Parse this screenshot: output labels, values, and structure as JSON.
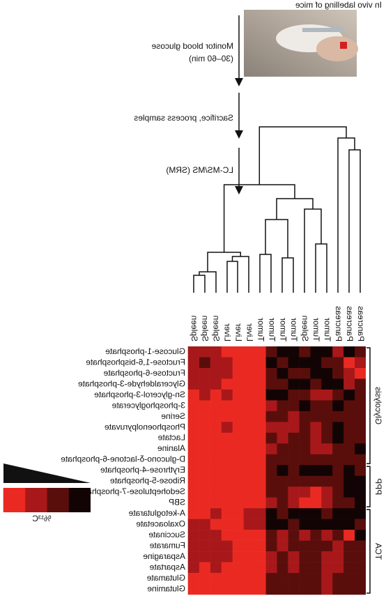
{
  "header": {
    "title": "In vivo labelling of mice"
  },
  "steps": [
    [
      "Monitor blood glucose",
      "(30–60 min)"
    ],
    [
      "Sacrifice, process samples"
    ],
    [
      "LC-MS/MS (SRM)"
    ]
  ],
  "heatmap": {
    "columns": [
      "Pancreas",
      "Pancreas",
      "Pancreas",
      "Tumor",
      "Tumor",
      "Spleen",
      "Tumor",
      "Tumor",
      "Tumor",
      "Tumor",
      "Liver",
      "Liver",
      "Liver",
      "Spleen",
      "Spleen",
      "Spleen"
    ],
    "rows": [
      "Glucose-1-phosphate",
      "Fructose-1,6-bisphosphate",
      "Fructose-6-phosphate",
      "Glyceraldehyde-3-phosphate",
      "Sn-glycerol-3-phosphate",
      "3-phosphoglycerate",
      "Serine",
      "Phosphoenolpyruvate",
      "Lactate",
      "Alanine",
      "D-glucono-δ-lactone-6-phosphate",
      "Erythrose-4-phosphate",
      "Ribose-5-phosphate",
      "Sedoheptulose-7-phosphate",
      "SBP",
      "A-ketoglutarate",
      "Oxaloacetate",
      "Succinate",
      "Fumarate",
      "Asparagine",
      "Aspartate",
      "Glutamate",
      "Glutamine"
    ],
    "groups": [
      "Glycolysis",
      "PPP",
      "TCA"
    ],
    "values": [
      [
        1,
        0,
        2,
        0,
        0,
        1,
        0,
        0,
        1,
        3,
        3,
        3,
        3,
        2,
        2,
        2
      ],
      [
        2,
        3,
        1,
        1,
        0,
        0,
        0,
        1,
        0,
        3,
        3,
        3,
        2,
        2,
        1,
        2
      ],
      [
        3,
        2,
        1,
        0,
        0,
        1,
        1,
        0,
        1,
        3,
        3,
        3,
        2,
        2,
        2,
        2
      ],
      [
        1,
        2,
        0,
        0,
        1,
        0,
        0,
        1,
        1,
        3,
        3,
        3,
        3,
        2,
        2,
        2
      ],
      [
        1,
        0,
        1,
        2,
        2,
        1,
        1,
        0,
        0,
        3,
        3,
        3,
        2,
        3,
        2,
        3
      ],
      [
        1,
        1,
        0,
        1,
        1,
        0,
        1,
        1,
        2,
        3,
        3,
        3,
        3,
        3,
        3,
        3
      ],
      [
        1,
        1,
        1,
        1,
        1,
        1,
        2,
        1,
        1,
        3,
        3,
        3,
        3,
        3,
        3,
        3
      ],
      [
        1,
        1,
        0,
        1,
        2,
        1,
        2,
        2,
        2,
        3,
        3,
        3,
        2,
        3,
        3,
        3
      ],
      [
        1,
        1,
        0,
        1,
        2,
        1,
        1,
        2,
        1,
        3,
        3,
        3,
        3,
        3,
        3,
        3
      ],
      [
        0,
        1,
        1,
        2,
        2,
        1,
        1,
        1,
        2,
        3,
        3,
        3,
        3,
        3,
        3,
        3
      ],
      [
        1,
        1,
        1,
        1,
        1,
        1,
        1,
        1,
        1,
        3,
        3,
        3,
        3,
        3,
        3,
        3
      ],
      [
        1,
        0,
        1,
        0,
        0,
        0,
        1,
        0,
        1,
        3,
        3,
        3,
        3,
        3,
        3,
        3
      ],
      [
        0,
        0,
        1,
        1,
        1,
        1,
        1,
        1,
        1,
        3,
        3,
        3,
        3,
        3,
        3,
        3
      ],
      [
        0,
        0,
        1,
        2,
        3,
        2,
        2,
        1,
        1,
        3,
        3,
        3,
        3,
        3,
        3,
        3
      ],
      [
        0,
        1,
        1,
        2,
        3,
        3,
        2,
        1,
        2,
        3,
        3,
        3,
        3,
        3,
        3,
        3
      ],
      [
        0,
        0,
        0,
        1,
        0,
        0,
        0,
        1,
        0,
        2,
        2,
        3,
        3,
        2,
        3,
        3
      ],
      [
        1,
        0,
        0,
        0,
        0,
        0,
        1,
        0,
        0,
        2,
        2,
        3,
        3,
        3,
        2,
        2
      ],
      [
        0,
        3,
        1,
        2,
        1,
        2,
        1,
        2,
        1,
        3,
        3,
        3,
        3,
        2,
        2,
        2
      ],
      [
        1,
        1,
        2,
        1,
        1,
        1,
        1,
        2,
        1,
        3,
        3,
        3,
        2,
        2,
        2,
        2
      ],
      [
        1,
        1,
        2,
        2,
        1,
        1,
        2,
        1,
        2,
        3,
        3,
        3,
        2,
        2,
        2,
        2
      ],
      [
        1,
        1,
        2,
        2,
        1,
        1,
        2,
        1,
        2,
        3,
        3,
        3,
        3,
        2,
        3,
        2
      ],
      [
        1,
        1,
        1,
        2,
        1,
        1,
        1,
        1,
        1,
        3,
        3,
        3,
        3,
        3,
        3,
        3
      ],
      [
        1,
        1,
        1,
        2,
        1,
        1,
        1,
        1,
        1,
        3,
        3,
        3,
        3,
        3,
        3,
        3
      ]
    ]
  },
  "legend": {
    "label": "%¹³C",
    "colors": [
      "#120404",
      "#5a0e0c",
      "#a8181a",
      "#ea2a22"
    ]
  }
}
